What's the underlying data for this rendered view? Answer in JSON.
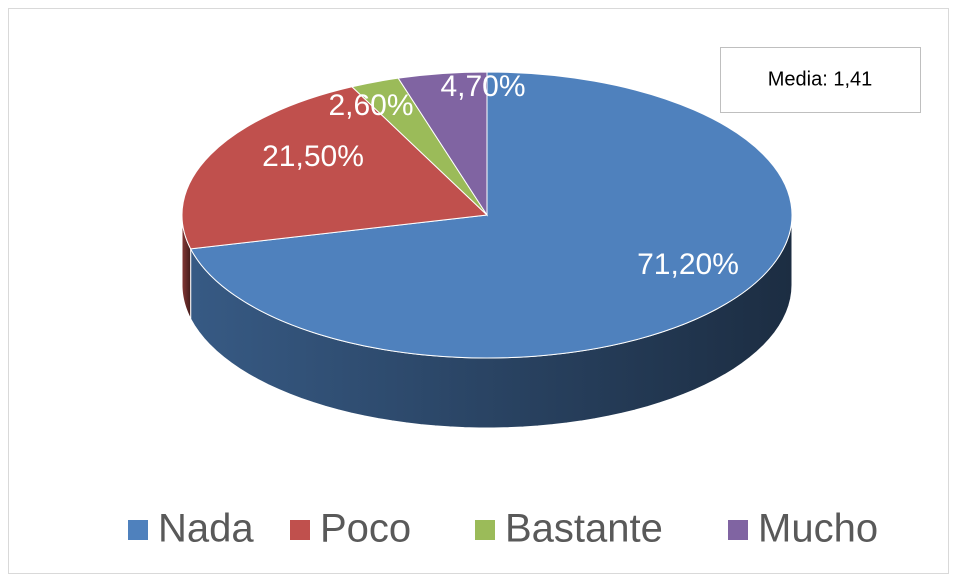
{
  "chart_data": {
    "type": "pie",
    "categories": [
      "Nada",
      "Poco",
      "Bastante",
      "Mucho"
    ],
    "values": [
      71.2,
      21.5,
      2.6,
      4.7
    ],
    "value_labels": [
      "71,20%",
      "21,50%",
      "2,60%",
      "4,70%"
    ],
    "colors": [
      "#4f81bd",
      "#c0504d",
      "#9bbb59",
      "#8064a2"
    ],
    "annotation": "Media: 1,41",
    "legend": "bottom"
  }
}
